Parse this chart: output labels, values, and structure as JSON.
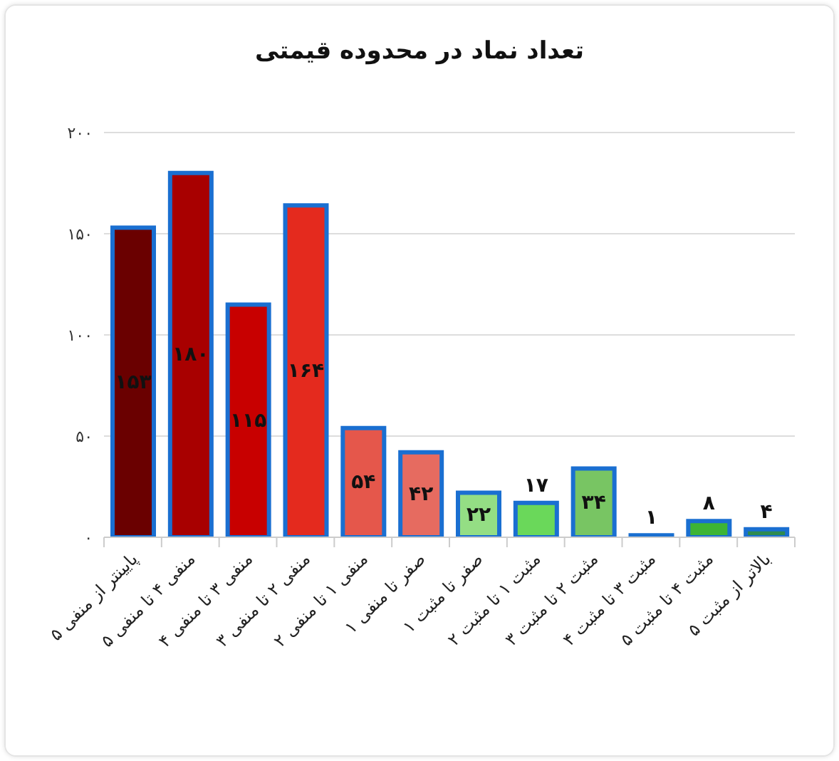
{
  "chart_data": {
    "type": "bar",
    "title": "تعداد نماد در محدوده قیمتی",
    "categories": [
      "پایینتر از منفی ۵",
      "منفی ۴ تا منفی ۵",
      "منفی ۳ تا منفی ۴",
      "منفی ۲ تا منفی ۳",
      "منفی ۱ تا منفی ۲",
      "صفر تا منفی ۱",
      "صفر تا مثبت ۱",
      "مثبت ۱ تا مثبت ۲",
      "مثبت ۲ تا مثبت ۳",
      "مثبت ۳ تا مثبت ۴",
      "مثبت ۴ تا مثبت ۵",
      "بالاتر از مثبت ۵"
    ],
    "values": [
      153,
      180,
      115,
      164,
      54,
      42,
      22,
      17,
      34,
      1,
      8,
      4
    ],
    "colors": [
      "#6a0000",
      "#a80000",
      "#c80000",
      "#e42a1e",
      "#e5574b",
      "#e66b60",
      "#94de84",
      "#6ad85a",
      "#78c563",
      "#1f6fd0",
      "#3db434",
      "#2e8b4f"
    ],
    "value_labels": [
      "۱۵۳",
      "۱۸۰",
      "۱۱۵",
      "۱۶۴",
      "۵۴",
      "۴۲",
      "۲۲",
      "۱۷",
      "۳۴",
      "۱",
      "۸",
      "۴"
    ],
    "ylim": [
      0,
      200
    ],
    "yticks": [
      {
        "value": 0,
        "label": "۰"
      },
      {
        "value": 50,
        "label": "۵۰"
      },
      {
        "value": 100,
        "label": "۱۰۰"
      },
      {
        "value": 150,
        "label": "۱۵۰"
      },
      {
        "value": 200,
        "label": "۲۰۰"
      }
    ],
    "grid": "y"
  }
}
